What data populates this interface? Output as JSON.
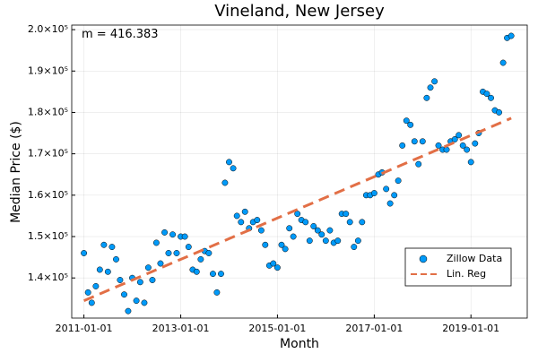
{
  "chart_data": {
    "type": "scatter",
    "title": "Vineland, New Jersey",
    "xlabel": "Month",
    "ylabel": "Median Price ($)",
    "annotation": "m = 416.383",
    "xlim": [
      "2010-10-01",
      "2020-03-01"
    ],
    "xticks": [
      "2011-01-01",
      "2013-01-01",
      "2015-01-01",
      "2017-01-01",
      "2019-01-01"
    ],
    "ylim": [
      130300,
      201100
    ],
    "yticks": [
      {
        "value": 140000,
        "label": "1.4×10⁵"
      },
      {
        "value": 150000,
        "label": "1.5×10⁵"
      },
      {
        "value": 160000,
        "label": "1.6×10⁵"
      },
      {
        "value": 170000,
        "label": "1.7×10⁵"
      },
      {
        "value": 180000,
        "label": "1.8×10⁵"
      },
      {
        "value": 190000,
        "label": "1.9×10⁵"
      },
      {
        "value": 200000,
        "label": "2.0×10⁵"
      }
    ],
    "grid": true,
    "legend": "bottom-right",
    "series": [
      {
        "name": "Zillow Data",
        "color": "#009af9",
        "x": [
          "2011-01-01",
          "2011-02-01",
          "2011-03-01",
          "2011-04-01",
          "2011-05-01",
          "2011-06-01",
          "2011-07-01",
          "2011-08-01",
          "2011-09-01",
          "2011-10-01",
          "2011-11-01",
          "2011-12-01",
          "2012-01-01",
          "2012-02-01",
          "2012-03-01",
          "2012-04-01",
          "2012-05-01",
          "2012-06-01",
          "2012-07-01",
          "2012-08-01",
          "2012-09-01",
          "2012-10-01",
          "2012-11-01",
          "2012-12-01",
          "2013-01-01",
          "2013-02-01",
          "2013-03-01",
          "2013-04-01",
          "2013-05-01",
          "2013-06-01",
          "2013-07-01",
          "2013-08-01",
          "2013-09-01",
          "2013-10-01",
          "2013-11-01",
          "2013-12-01",
          "2014-01-01",
          "2014-02-01",
          "2014-03-01",
          "2014-04-01",
          "2014-05-01",
          "2014-06-01",
          "2014-07-01",
          "2014-08-01",
          "2014-09-01",
          "2014-10-01",
          "2014-11-01",
          "2014-12-01",
          "2015-01-01",
          "2015-02-01",
          "2015-03-01",
          "2015-04-01",
          "2015-05-01",
          "2015-06-01",
          "2015-07-01",
          "2015-08-01",
          "2015-09-01",
          "2015-10-01",
          "2015-11-01",
          "2015-12-01",
          "2016-01-01",
          "2016-02-01",
          "2016-03-01",
          "2016-04-01",
          "2016-05-01",
          "2016-06-01",
          "2016-07-01",
          "2016-08-01",
          "2016-09-01",
          "2016-10-01",
          "2016-11-01",
          "2016-12-01",
          "2017-01-01",
          "2017-02-01",
          "2017-03-01",
          "2017-04-01",
          "2017-05-01",
          "2017-06-01",
          "2017-07-01",
          "2017-08-01",
          "2017-09-01",
          "2017-10-01",
          "2017-11-01",
          "2017-12-01",
          "2018-01-01",
          "2018-02-01",
          "2018-03-01",
          "2018-04-01",
          "2018-05-01",
          "2018-06-01",
          "2018-07-01",
          "2018-08-01",
          "2018-09-01",
          "2018-10-01",
          "2018-11-01",
          "2018-12-01",
          "2019-01-01",
          "2019-02-01",
          "2019-03-01",
          "2019-04-01",
          "2019-05-01",
          "2019-06-01",
          "2019-07-01",
          "2019-08-01",
          "2019-09-01",
          "2019-10-01",
          "2019-11-01"
        ],
        "values": [
          146000,
          136500,
          134000,
          138000,
          142000,
          148000,
          141500,
          147500,
          144500,
          139500,
          136000,
          132000,
          140000,
          134500,
          139000,
          134000,
          142500,
          139500,
          148500,
          143500,
          151000,
          146000,
          150500,
          146000,
          150000,
          150000,
          147500,
          142000,
          141500,
          144500,
          146500,
          146000,
          141000,
          136500,
          141000,
          163000,
          168000,
          166500,
          155000,
          153500,
          156000,
          152000,
          153500,
          154000,
          151500,
          148000,
          143000,
          143500,
          142500,
          148000,
          147000,
          152000,
          150000,
          155500,
          154000,
          153500,
          149000,
          152500,
          151500,
          150500,
          149000,
          151500,
          148500,
          149000,
          155500,
          155500,
          153500,
          147500,
          149000,
          153500,
          160000,
          160000,
          160500,
          165000,
          165500,
          161500,
          158000,
          160000,
          163500,
          172000,
          178000,
          177000,
          173000,
          167500,
          173000,
          183500,
          186000,
          187500,
          172000,
          171000,
          171000,
          173000,
          173500,
          174500,
          172000,
          171000,
          168000,
          172500,
          175000,
          185000,
          184500,
          183500,
          180500,
          180000,
          192000,
          198000,
          198500
        ]
      },
      {
        "name": "Lin. Reg",
        "color": "#e26f46",
        "x": [
          "2011-01-01",
          "2019-11-01"
        ],
        "values": [
          134500,
          178600
        ]
      }
    ]
  }
}
